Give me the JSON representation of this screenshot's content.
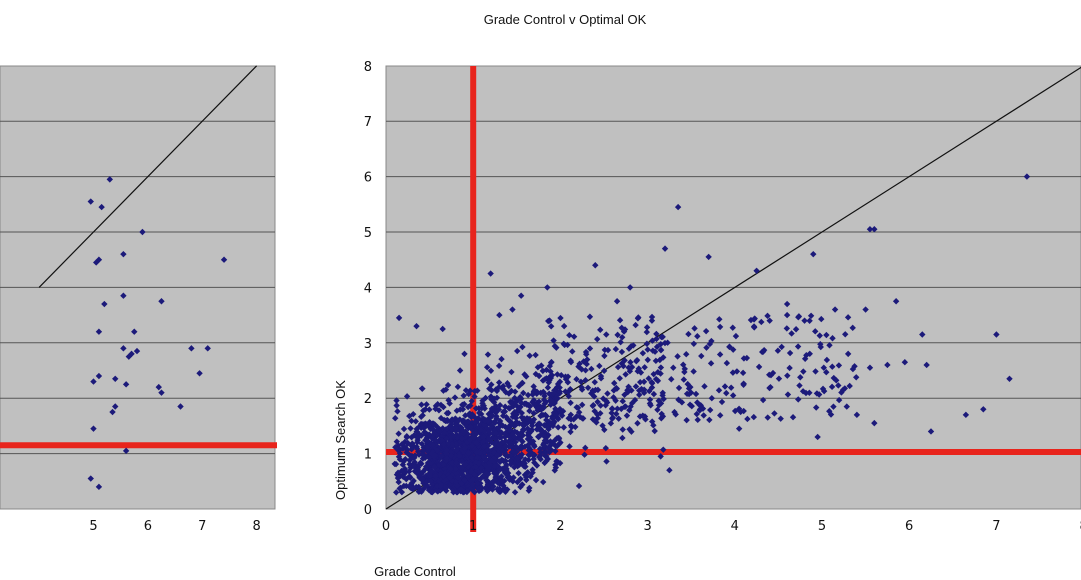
{
  "chart_data": [
    {
      "type": "scatter",
      "title": "",
      "xlabel": "",
      "ylabel": "",
      "xlim": [
        0,
        8
      ],
      "ylim": [
        0,
        8
      ],
      "x_ticks_visible": [
        "5",
        "6",
        "7",
        "8"
      ],
      "grid": "horizontal",
      "reference_lines": {
        "diagonal": "y=x",
        "horizontal_threshold": 1
      },
      "colors": {
        "plot_bg": "#c0c0c0",
        "points": "#1c1a7a",
        "threshold": "#e8241c",
        "grid": "#555555"
      },
      "points": [
        [
          5.3,
          5.95
        ],
        [
          5.15,
          5.45
        ],
        [
          4.95,
          5.55
        ],
        [
          5.9,
          5.0
        ],
        [
          5.55,
          4.6
        ],
        [
          7.4,
          4.5
        ],
        [
          5.05,
          4.45
        ],
        [
          5.1,
          4.5
        ],
        [
          5.2,
          3.7
        ],
        [
          5.55,
          3.85
        ],
        [
          6.25,
          3.75
        ],
        [
          5.75,
          3.2
        ],
        [
          5.1,
          3.2
        ],
        [
          5.55,
          2.9
        ],
        [
          5.65,
          2.75
        ],
        [
          5.7,
          2.8
        ],
        [
          5.8,
          2.85
        ],
        [
          6.8,
          2.9
        ],
        [
          7.1,
          2.9
        ],
        [
          5.1,
          2.4
        ],
        [
          5.4,
          2.35
        ],
        [
          5.6,
          2.25
        ],
        [
          5.0,
          2.3
        ],
        [
          6.2,
          2.2
        ],
        [
          6.25,
          2.1
        ],
        [
          6.95,
          2.45
        ],
        [
          6.6,
          1.85
        ],
        [
          5.35,
          1.75
        ],
        [
          5.4,
          1.85
        ],
        [
          5.0,
          1.45
        ],
        [
          5.6,
          1.05
        ],
        [
          4.95,
          0.55
        ],
        [
          5.1,
          0.4
        ]
      ]
    },
    {
      "type": "scatter",
      "title": "Grade Control v Optimal OK",
      "xlabel": "Grade Control",
      "ylabel": "Optimum Search OK",
      "xlim": [
        0,
        8
      ],
      "ylim": [
        0,
        8
      ],
      "x_ticks": [
        "0",
        "1",
        "2",
        "3",
        "4",
        "5",
        "6",
        "7",
        "8"
      ],
      "y_ticks": [
        "0",
        "1",
        "2",
        "3",
        "4",
        "5",
        "6",
        "7",
        "8"
      ],
      "grid": "horizontal",
      "reference_lines": {
        "diagonal": "y=x",
        "vertical_threshold": 1,
        "horizontal_threshold": 1
      },
      "colors": {
        "plot_bg": "#c0c0c0",
        "points": "#1c1a7a",
        "threshold": "#e8241c",
        "grid": "#555555"
      },
      "points": [
        [
          3.35,
          5.45
        ],
        [
          3.2,
          4.7
        ],
        [
          3.7,
          4.55
        ],
        [
          1.2,
          4.25
        ],
        [
          2.4,
          4.4
        ],
        [
          7.35,
          6.0
        ],
        [
          5.55,
          5.05
        ],
        [
          5.6,
          5.05
        ],
        [
          4.9,
          4.6
        ],
        [
          4.25,
          4.3
        ],
        [
          1.85,
          4.0
        ],
        [
          2.8,
          4.0
        ],
        [
          5.85,
          3.75
        ],
        [
          5.5,
          3.6
        ],
        [
          5.15,
          3.6
        ],
        [
          4.6,
          3.7
        ],
        [
          4.4,
          3.4
        ],
        [
          4.6,
          3.5
        ],
        [
          4.8,
          3.4
        ],
        [
          6.15,
          3.15
        ],
        [
          7.0,
          3.15
        ],
        [
          6.2,
          2.6
        ],
        [
          5.3,
          2.8
        ],
        [
          5.55,
          2.55
        ],
        [
          5.75,
          2.6
        ],
        [
          5.95,
          2.65
        ],
        [
          6.85,
          1.8
        ],
        [
          6.65,
          1.7
        ],
        [
          7.15,
          2.35
        ],
        [
          6.25,
          1.4
        ],
        [
          5.4,
          1.7
        ],
        [
          5.6,
          1.55
        ],
        [
          4.95,
          1.3
        ],
        [
          3.25,
          0.7
        ],
        [
          4.05,
          1.45
        ],
        [
          3.15,
          0.95
        ],
        [
          0.65,
          3.25
        ],
        [
          0.15,
          3.45
        ],
        [
          0.35,
          3.3
        ],
        [
          1.55,
          3.85
        ],
        [
          0.85,
          2.5
        ],
        [
          0.9,
          2.8
        ],
        [
          1.3,
          3.5
        ],
        [
          1.45,
          3.6
        ],
        [
          2.65,
          3.75
        ],
        [
          3.05,
          3.4
        ]
      ],
      "cloud": {
        "description": "dense cluster",
        "x_range": [
          0.1,
          2.0
        ],
        "y_range": [
          0.3,
          2.6
        ],
        "center": [
          0.8,
          1.0
        ]
      }
    }
  ]
}
